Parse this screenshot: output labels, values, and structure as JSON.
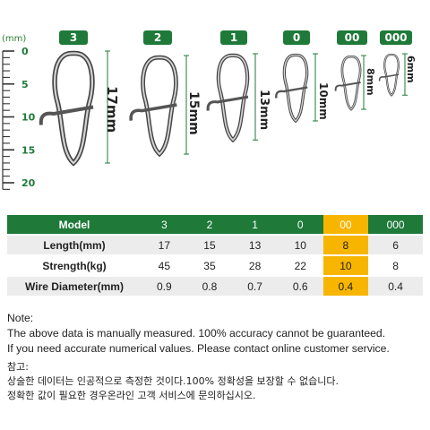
{
  "ruler": {
    "unit": "(mm)",
    "marks": [
      "0",
      "5",
      "10",
      "15",
      "20"
    ]
  },
  "sizes": [
    {
      "badge": "3",
      "length_label": "17mm"
    },
    {
      "badge": "2",
      "length_label": "15mm"
    },
    {
      "badge": "1",
      "length_label": "13mm"
    },
    {
      "badge": "0",
      "length_label": "10mm"
    },
    {
      "badge": "00",
      "length_label": "8mm"
    },
    {
      "badge": "000",
      "length_label": "6mm"
    }
  ],
  "table": {
    "header": [
      "Model",
      "3",
      "2",
      "1",
      "0",
      "00",
      "000"
    ],
    "rows": [
      [
        "Length(mm)",
        "17",
        "15",
        "13",
        "10",
        "8",
        "6"
      ],
      [
        "Strength(kg)",
        "45",
        "35",
        "28",
        "22",
        "10",
        "8"
      ],
      [
        "Wire Diameter(mm)",
        "0.9",
        "0.8",
        "0.7",
        "0.6",
        "0.4",
        "0.4"
      ]
    ]
  },
  "colors": {
    "brand_green": "#1f7a3a",
    "highlight": "#f7b500",
    "row_grey": "#ececec"
  },
  "notes": {
    "title": "Note:",
    "line1": "The above data is manually measured. 100% accuracy cannot be guaranteed.",
    "line2": "If you need accurate numerical values. Please contact online customer service."
  },
  "notes_kr": {
    "title": "참고:",
    "line1": "상술한 데이터는 인공적으로 측정한 것이다.100% 정확성을 보장할 수 없습니다.",
    "line2": "정확한 값이 필요한 경우온라인 고객 서비스에 문의하십시오."
  }
}
